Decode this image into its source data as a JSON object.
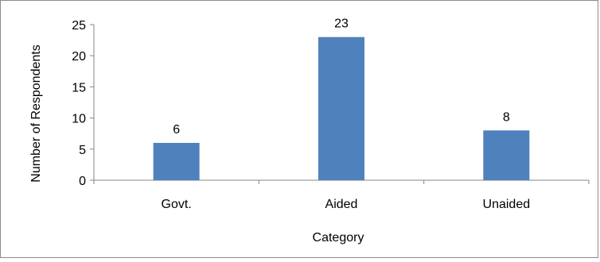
{
  "chart_data": {
    "type": "bar",
    "categories": [
      "Govt.",
      "Aided",
      "Unaided"
    ],
    "values": [
      6,
      23,
      8
    ],
    "data_labels": [
      "6",
      "23",
      "8"
    ],
    "xlabel": "Category",
    "ylabel": "Number of Respondents",
    "ylim": [
      0,
      25
    ],
    "yticks": [
      0,
      5,
      10,
      15,
      20,
      25
    ],
    "grid": false,
    "bar_color": "#4F81BD"
  }
}
